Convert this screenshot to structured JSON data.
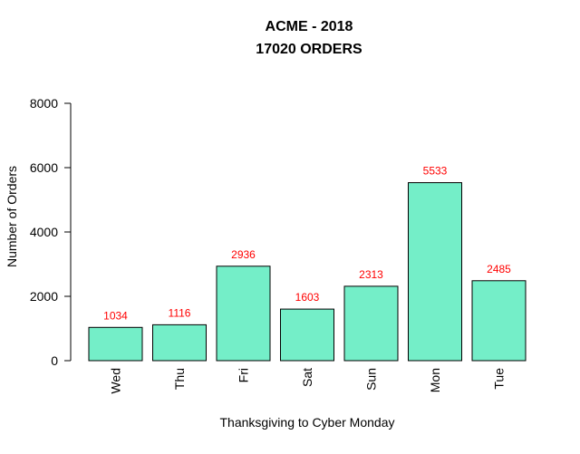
{
  "chart_data": {
    "type": "bar",
    "title_line1": "ACME - 2018",
    "title_line2": "17020 ORDERS",
    "xlabel": "Thanksgiving to Cyber Monday",
    "ylabel": "Number of Orders",
    "categories": [
      "Wed",
      "Thu",
      "Fri",
      "Sat",
      "Sun",
      "Mon",
      "Tue"
    ],
    "values": [
      1034,
      1116,
      2936,
      1603,
      2313,
      5533,
      2485
    ],
    "ylim": [
      0,
      8000
    ],
    "yticks": [
      0,
      2000,
      4000,
      6000,
      8000
    ],
    "bar_color": "#74EEC8",
    "label_color": "#FF0000",
    "grid": false,
    "legend": "none"
  }
}
